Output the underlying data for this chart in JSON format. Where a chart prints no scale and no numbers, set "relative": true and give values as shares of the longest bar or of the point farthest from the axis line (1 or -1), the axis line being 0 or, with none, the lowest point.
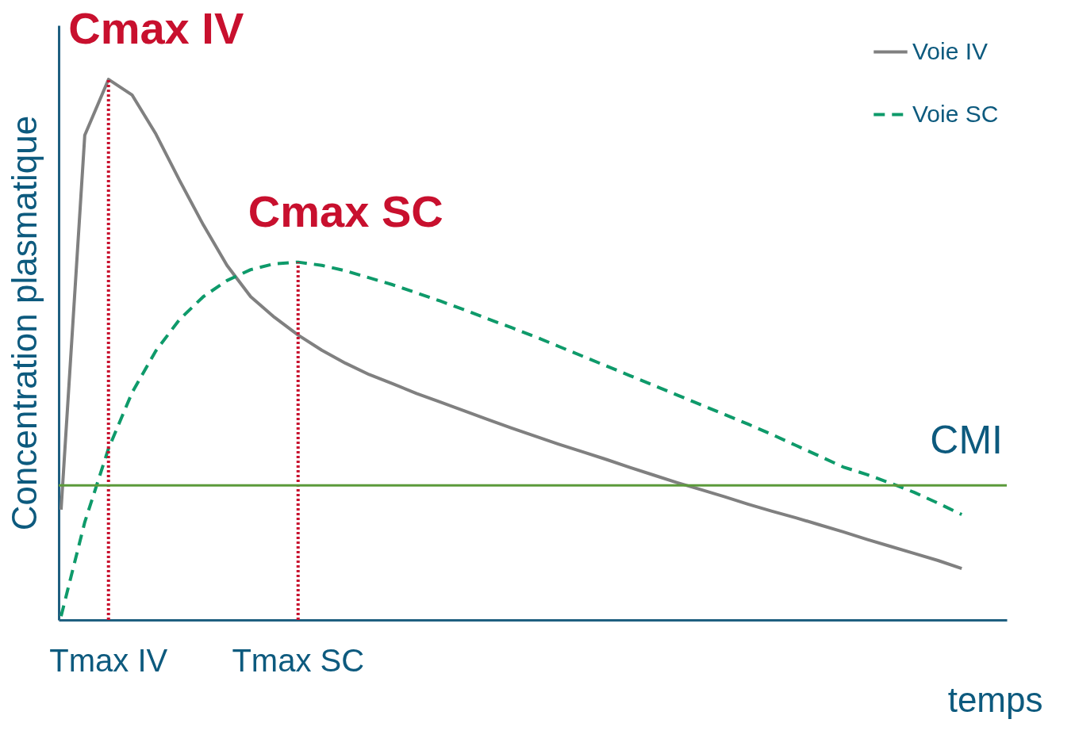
{
  "chart_data": {
    "type": "line",
    "relative": true,
    "xlabel": "temps",
    "ylabel": "Concentration plasmatique",
    "grid": false,
    "legend": "top right",
    "marker": "none",
    "categories": [
      null,
      null,
      "Tmax IV",
      null,
      null,
      null,
      null,
      null,
      null,
      null,
      "Tmax SC",
      null,
      null,
      null,
      null,
      null,
      null,
      null,
      null,
      null,
      null,
      null,
      null,
      null,
      null,
      null,
      null,
      null,
      null,
      null,
      null,
      null,
      null,
      null,
      null,
      null,
      null,
      null,
      null
    ],
    "series": [
      {
        "name": "Voie IV",
        "color": "#808080",
        "line_style": "solid",
        "values": [
          0.204,
          0.897,
          1.0,
          0.971,
          0.899,
          0.813,
          0.731,
          0.656,
          0.598,
          0.56,
          0.527,
          0.499,
          0.475,
          0.454,
          0.437,
          0.419,
          0.403,
          0.387,
          0.371,
          0.355,
          0.34,
          0.325,
          0.311,
          0.297,
          0.282,
          0.268,
          0.254,
          0.241,
          0.228,
          0.214,
          0.201,
          0.189,
          0.176,
          0.163,
          0.149,
          0.136,
          0.123,
          0.11,
          0.095
        ]
      },
      {
        "name": "Voie SC",
        "color": "#0e9a6a",
        "line_style": "dashed",
        "values": [
          0.007,
          0.181,
          0.317,
          0.421,
          0.498,
          0.556,
          0.598,
          0.628,
          0.648,
          0.659,
          0.662,
          0.656,
          0.646,
          0.633,
          0.62,
          0.605,
          0.59,
          0.574,
          0.557,
          0.541,
          0.524,
          0.506,
          0.488,
          0.47,
          0.452,
          0.434,
          0.416,
          0.398,
          0.38,
          0.362,
          0.343,
          0.323,
          0.303,
          0.283,
          0.269,
          0.253,
          0.236,
          0.216,
          0.195
        ]
      }
    ],
    "ref_lines": [
      {
        "axis": "x",
        "value": "Tmax IV",
        "color": "#c8102e",
        "line_style": "dotted"
      },
      {
        "axis": "x",
        "value": "Tmax SC",
        "color": "#c8102e",
        "line_style": "dotted"
      },
      {
        "axis": "y",
        "value": 0.249,
        "label": "CMI",
        "color": "#5b9a3a",
        "line_style": "solid"
      }
    ],
    "annotations": [
      {
        "text": "Cmax IV",
        "x": "Tmax IV",
        "y": 1.0
      },
      {
        "text": "Cmax SC",
        "x": "Tmax SC",
        "y": 0.662
      }
    ]
  }
}
